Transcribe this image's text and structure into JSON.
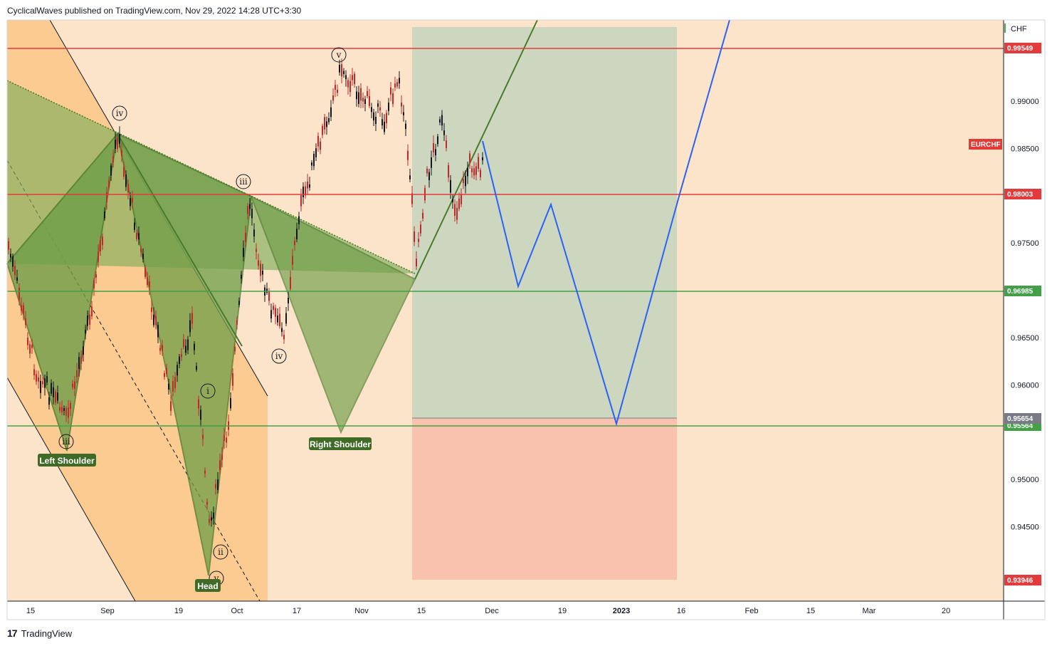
{
  "header": {
    "text": "CyclicalWaves published on TradingView.com, Nov 29, 2022 14:28 UTC+3:30"
  },
  "footer": {
    "logo": "17",
    "brand": "TradingView"
  },
  "colors": {
    "background": "#fce4ca",
    "orange_zone": "#fbc98d",
    "green_fill": "#7fae5a",
    "green_edge": "#4a7a2a",
    "projection": "#2962ff",
    "red_line": "#e33b3b",
    "green_line": "#4caf50",
    "target_zone": "#c9d6bf",
    "stop_zone": "#f8c2ae"
  },
  "chart_data": {
    "type": "line",
    "symbol": "EURCHF",
    "currency": "CHF",
    "ylim": [
      0.93946,
      0.9974
    ],
    "y_ticks": [
      0.99,
      0.985,
      0.975,
      0.965,
      0.96,
      0.95,
      0.945
    ],
    "y_tick_labels": [
      "0.99000",
      "0.98500",
      "0.97500",
      "0.96500",
      "0.96000",
      "0.95000",
      "0.94500"
    ],
    "x_ticks": [
      "15",
      "Sep",
      "19",
      "Oct",
      "17",
      "Nov",
      "15",
      "Dec",
      "19",
      "2023",
      "16",
      "Feb",
      "15",
      "Mar",
      "20"
    ],
    "bold_x_ticks": [
      "2023"
    ],
    "levels": [
      {
        "value": 0.99549,
        "label": "0.99549",
        "color": "#e33b3b"
      },
      {
        "value": 0.98003,
        "label": "0.98003",
        "color": "#e33b3b"
      },
      {
        "value": 0.96985,
        "label": "0.96985",
        "color": "#43a047"
      },
      {
        "value": 0.95564,
        "label": "0.95564",
        "color": "#43a047"
      }
    ],
    "position_badges": [
      {
        "value": 0.95654,
        "label": "0.95654",
        "color": "#787b86"
      },
      {
        "value": 0.93946,
        "label": "0.93946",
        "color": "#e33b3b"
      }
    ],
    "symbol_badge": {
      "label": "EURCHF",
      "value": 0.985
    },
    "patterns": [
      {
        "label": "Left Shoulder",
        "value": 0.9527
      },
      {
        "label": "Head",
        "value": 0.9393
      },
      {
        "label": "Right Shoulder",
        "value": 0.9545
      }
    ],
    "wave_labels": [
      {
        "label": "iv",
        "value": 0.9882
      },
      {
        "label": "iii",
        "value": 0.9817
      },
      {
        "label": "iv",
        "value": 0.9645
      },
      {
        "label": "v",
        "value": 0.9958
      },
      {
        "label": "iii",
        "value": 0.9553
      },
      {
        "label": "i",
        "value": 0.9598
      },
      {
        "label": "ii",
        "value": 0.9423
      },
      {
        "label": "v",
        "value": 0.94
      }
    ],
    "projection": [
      0.9855,
      0.9708,
      0.979,
      0.9558,
      0.98,
      0.9975
    ]
  }
}
